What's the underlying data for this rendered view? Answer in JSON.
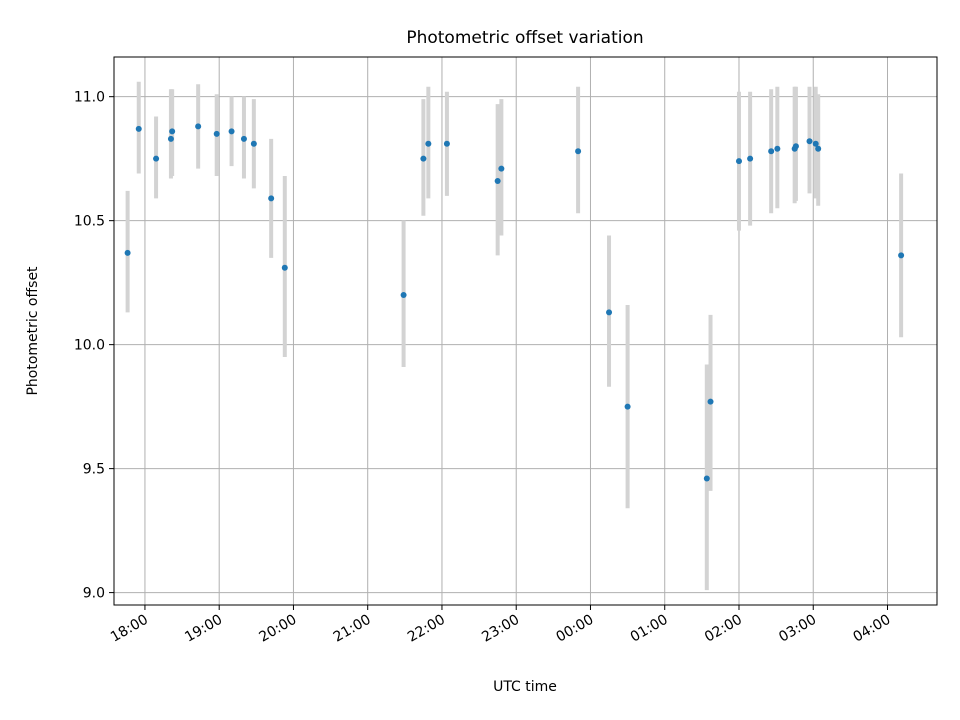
{
  "chart_data": {
    "type": "scatter",
    "title": "Photometric offset variation",
    "xlabel": "UTC time",
    "ylabel": "Photometric offset",
    "x_axis_kind": "time",
    "xlim": [
      "17:35",
      "04:40"
    ],
    "ylim": [
      8.95,
      11.16
    ],
    "xticks": [
      "18:00",
      "19:00",
      "20:00",
      "21:00",
      "22:00",
      "23:00",
      "00:00",
      "01:00",
      "02:00",
      "03:00",
      "04:00"
    ],
    "yticks": [
      9.0,
      9.5,
      10.0,
      10.5,
      11.0
    ],
    "ytick_labels": [
      "9.0",
      "9.5",
      "10.0",
      "10.5",
      "11.0"
    ],
    "grid": true,
    "point_color": "#1f77b4",
    "errorbar_color": "#d3d3d3",
    "series": [
      {
        "points": [
          {
            "t": "17:46",
            "y": 10.37,
            "lo": 10.13,
            "hi": 10.62
          },
          {
            "t": "17:55",
            "y": 10.87,
            "lo": 10.69,
            "hi": 11.06
          },
          {
            "t": "18:09",
            "y": 10.75,
            "lo": 10.59,
            "hi": 10.92
          },
          {
            "t": "18:21",
            "y": 10.83,
            "lo": 10.67,
            "hi": 11.03
          },
          {
            "t": "18:22",
            "y": 10.86,
            "lo": 10.68,
            "hi": 11.03
          },
          {
            "t": "18:43",
            "y": 10.88,
            "lo": 10.71,
            "hi": 11.05
          },
          {
            "t": "18:58",
            "y": 10.85,
            "lo": 10.68,
            "hi": 11.01
          },
          {
            "t": "19:10",
            "y": 10.86,
            "lo": 10.72,
            "hi": 11.0
          },
          {
            "t": "19:20",
            "y": 10.83,
            "lo": 10.67,
            "hi": 11.0
          },
          {
            "t": "19:28",
            "y": 10.81,
            "lo": 10.63,
            "hi": 10.99
          },
          {
            "t": "19:42",
            "y": 10.59,
            "lo": 10.35,
            "hi": 10.83
          },
          {
            "t": "19:53",
            "y": 10.31,
            "lo": 9.95,
            "hi": 10.68
          },
          {
            "t": "21:29",
            "y": 10.2,
            "lo": 9.91,
            "hi": 10.5
          },
          {
            "t": "21:45",
            "y": 10.75,
            "lo": 10.52,
            "hi": 10.99
          },
          {
            "t": "21:49",
            "y": 10.81,
            "lo": 10.59,
            "hi": 11.04
          },
          {
            "t": "22:04",
            "y": 10.81,
            "lo": 10.6,
            "hi": 11.02
          },
          {
            "t": "22:45",
            "y": 10.66,
            "lo": 10.36,
            "hi": 10.97
          },
          {
            "t": "22:48",
            "y": 10.71,
            "lo": 10.44,
            "hi": 10.99
          },
          {
            "t": "23:50",
            "y": 10.78,
            "lo": 10.53,
            "hi": 11.04
          },
          {
            "t": "00:15",
            "y": 10.13,
            "lo": 9.83,
            "hi": 10.44
          },
          {
            "t": "00:30",
            "y": 9.75,
            "lo": 9.34,
            "hi": 10.16
          },
          {
            "t": "01:34",
            "y": 9.46,
            "lo": 9.01,
            "hi": 9.92
          },
          {
            "t": "01:37",
            "y": 9.77,
            "lo": 9.41,
            "hi": 10.12
          },
          {
            "t": "02:00",
            "y": 10.74,
            "lo": 10.46,
            "hi": 11.02
          },
          {
            "t": "02:09",
            "y": 10.75,
            "lo": 10.48,
            "hi": 11.02
          },
          {
            "t": "02:26",
            "y": 10.78,
            "lo": 10.53,
            "hi": 11.03
          },
          {
            "t": "02:31",
            "y": 10.79,
            "lo": 10.55,
            "hi": 11.04
          },
          {
            "t": "02:45",
            "y": 10.79,
            "lo": 10.57,
            "hi": 11.04
          },
          {
            "t": "02:46",
            "y": 10.8,
            "lo": 10.58,
            "hi": 11.04
          },
          {
            "t": "02:57",
            "y": 10.82,
            "lo": 10.61,
            "hi": 11.04
          },
          {
            "t": "03:02",
            "y": 10.81,
            "lo": 10.59,
            "hi": 11.04
          },
          {
            "t": "03:04",
            "y": 10.79,
            "lo": 10.56,
            "hi": 11.01
          },
          {
            "t": "04:11",
            "y": 10.36,
            "lo": 10.03,
            "hi": 10.69
          }
        ]
      }
    ]
  }
}
